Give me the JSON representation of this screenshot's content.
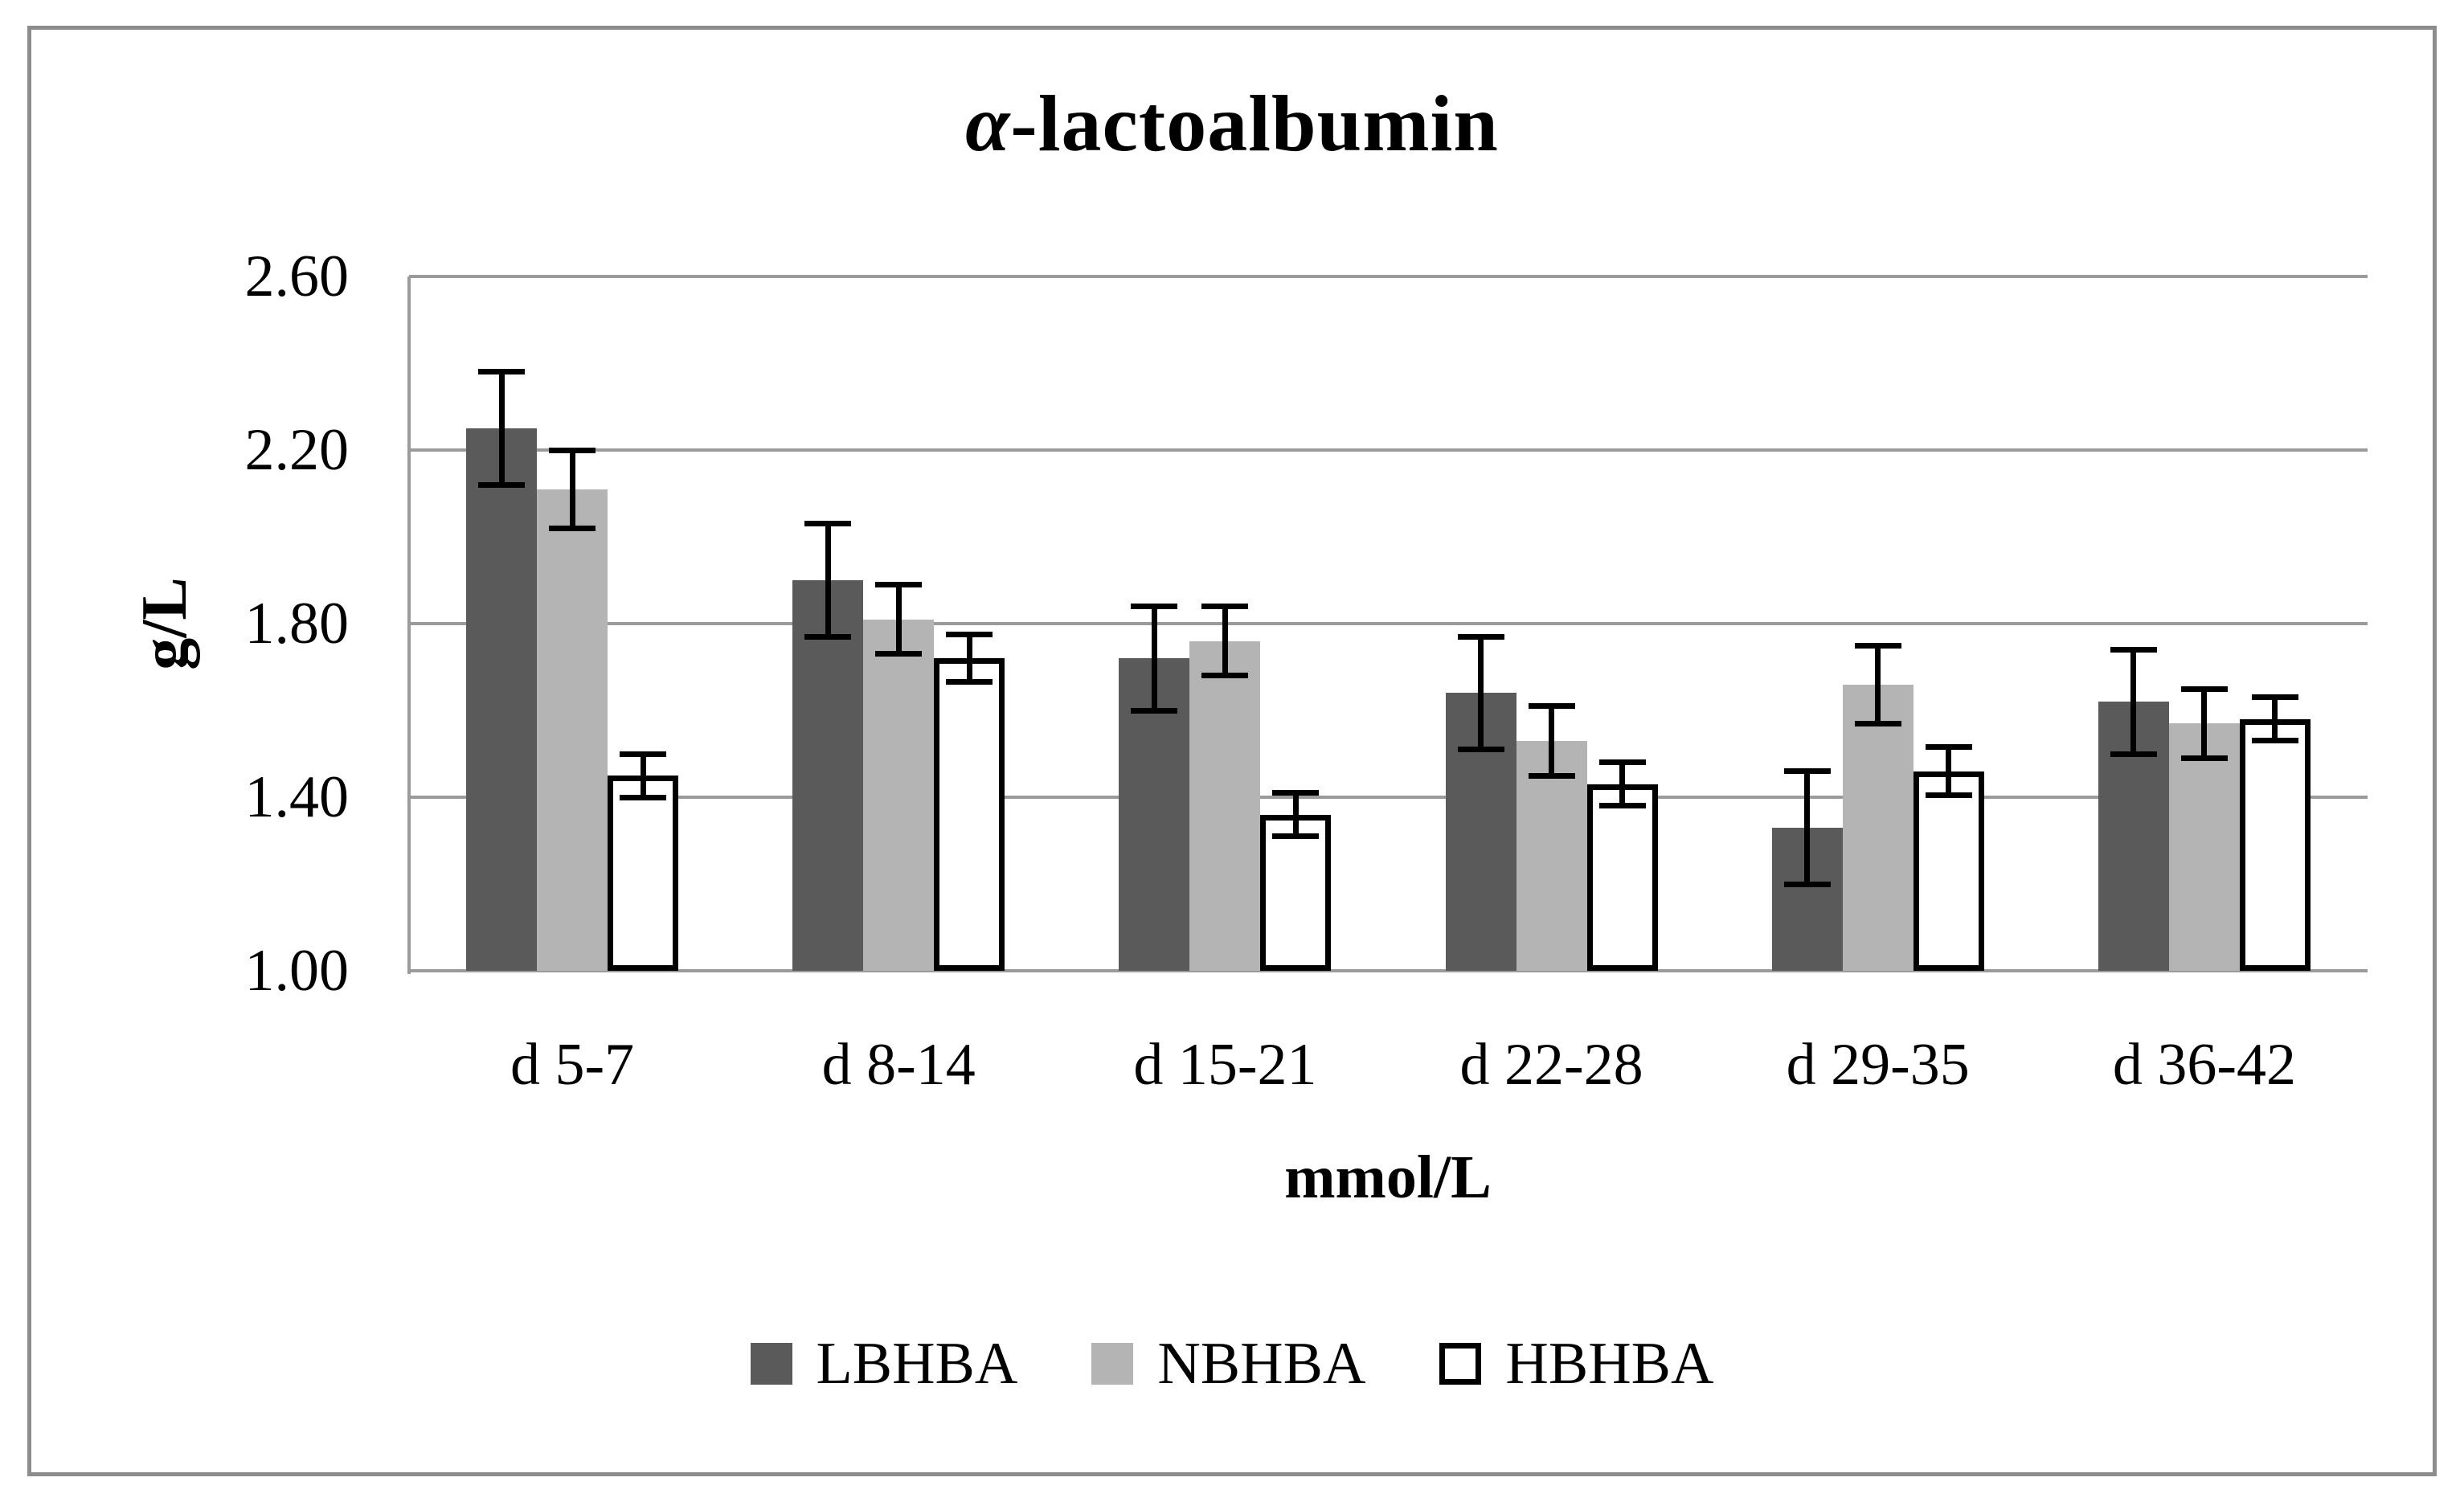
{
  "chart_data": {
    "type": "bar",
    "title": "α-lactoalbumin",
    "title_alpha": "α",
    "title_rest": "-lactoalbumin",
    "ylabel": "g/L",
    "xlabel": "mmol/L",
    "ylim": [
      1.0,
      2.6
    ],
    "y_ticks": [
      {
        "label": "2.60",
        "value": 2.6
      },
      {
        "label": "2.20",
        "value": 2.2
      },
      {
        "label": "1.80",
        "value": 1.8
      },
      {
        "label": "1.40",
        "value": 1.4
      },
      {
        "label": "1.00",
        "value": 1.0
      }
    ],
    "grid": true,
    "legend_position": "bottom",
    "categories": [
      "d 5-7",
      "d 8-14",
      "d 15-21",
      "d 22-28",
      "d 29-35",
      "d 36-42"
    ],
    "series": [
      {
        "name": "LBHBA",
        "fill": "#5a5a5a",
        "border": "none",
        "values": [
          2.25,
          1.9,
          1.72,
          1.64,
          1.33,
          1.62
        ],
        "errors": [
          0.13,
          0.13,
          0.12,
          0.13,
          0.13,
          0.12
        ]
      },
      {
        "name": "NBHBA",
        "fill": "#b4b4b4",
        "border": "none",
        "values": [
          2.11,
          1.81,
          1.76,
          1.53,
          1.66,
          1.57
        ],
        "errors": [
          0.09,
          0.08,
          0.08,
          0.08,
          0.09,
          0.08
        ]
      },
      {
        "name": "HBHBA",
        "fill": "#ffffff",
        "border": "#000000",
        "values": [
          1.45,
          1.72,
          1.36,
          1.43,
          1.46,
          1.58
        ],
        "errors": [
          0.05,
          0.055,
          0.05,
          0.05,
          0.055,
          0.05
        ]
      }
    ],
    "error_bar_color": "#000000"
  },
  "colors": {
    "gridline": "#9b9b9b",
    "axis": "#9b9b9b",
    "frame": "#8c8c8c",
    "background": "#ffffff",
    "bar_dark": "#5a5a5a",
    "bar_light": "#b4b4b4",
    "bar_white": "#ffffff",
    "text": "#000000"
  }
}
